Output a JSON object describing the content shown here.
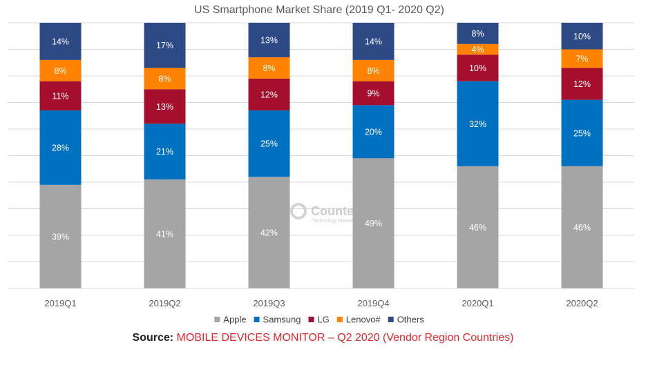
{
  "chart_data": {
    "type": "bar",
    "stacked": true,
    "title": "US Smartphone Market Share (2019 Q1- 2020 Q2)",
    "categories": [
      "2019Q1",
      "2019Q2",
      "2019Q3",
      "2019Q4",
      "2020Q1",
      "2020Q2"
    ],
    "series": [
      {
        "name": "Apple",
        "color": "#a5a5a5",
        "label_color": "#ffffff",
        "values": [
          39,
          41,
          42,
          49,
          46,
          46
        ],
        "labels": [
          "39%",
          "41%",
          "42%",
          "49%",
          "46%",
          "46%"
        ]
      },
      {
        "name": "Samsung",
        "color": "#0070c0",
        "label_color": "#ffffff",
        "values": [
          28,
          21,
          25,
          20,
          32,
          25
        ],
        "labels": [
          "28%",
          "21%",
          "25%",
          "20%",
          "32%",
          "25%"
        ]
      },
      {
        "name": "LG",
        "color": "#a50f2d",
        "label_color": "#ffffff",
        "values": [
          11,
          13,
          12,
          9,
          10,
          12
        ],
        "labels": [
          "11%",
          "13%",
          "12%",
          "9%",
          "10%",
          "12%"
        ]
      },
      {
        "name": "Lenovo#",
        "color": "#ff8200",
        "label_color": "#ffffff",
        "values": [
          8,
          8,
          8,
          8,
          4,
          7
        ],
        "labels": [
          "8%",
          "8%",
          "8%",
          "8%",
          "4%",
          "7%"
        ]
      },
      {
        "name": "Others",
        "color": "#2e4a86",
        "label_color": "#ffffff",
        "values": [
          14,
          17,
          13,
          14,
          8,
          10
        ],
        "labels": [
          "14%",
          "17%",
          "13%",
          "14%",
          "8%",
          "10%"
        ]
      }
    ],
    "ylim": [
      0,
      100
    ],
    "grid": true,
    "legend_position": "bottom"
  },
  "watermark": {
    "brand": "Counterpoint",
    "tagline": "Technology Market Research"
  },
  "source": {
    "prefix": "Source:",
    "text": " MOBILE DEVICES MONITOR – Q2 2020 (Vendor Region Countries)"
  }
}
